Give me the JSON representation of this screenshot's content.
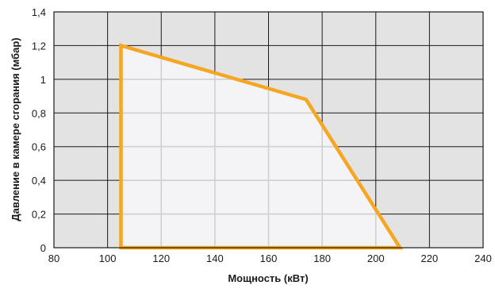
{
  "chart_data": {
    "type": "area",
    "xlabel": "Мощность (кВт)",
    "ylabel": "Давление в камере сгорания (мбар)",
    "xlim": [
      80,
      240
    ],
    "ylim": [
      0,
      1.4
    ],
    "x_ticks": [
      80,
      100,
      120,
      140,
      160,
      180,
      200,
      220,
      240
    ],
    "y_ticks": [
      0,
      0.2,
      0.4,
      0.6,
      0.8,
      1,
      1.2,
      1.4
    ],
    "x_tick_labels": [
      "80",
      "100",
      "120",
      "140",
      "160",
      "180",
      "200",
      "220",
      "240"
    ],
    "y_tick_labels": [
      "0",
      "0,2",
      "0,4",
      "0,6",
      "0,8",
      "1",
      "1,2",
      "1,4"
    ],
    "grid": true,
    "series": [
      {
        "x": [
          105,
          105,
          174,
          209,
          105
        ],
        "y": [
          0,
          1.2,
          0.88,
          0,
          0
        ]
      }
    ],
    "colors": {
      "plot_background": "#e3e3e3",
      "region_fill": "#f4f4f6",
      "outline": "#f5a623",
      "grid_inside_region": "#cfcfd4",
      "grid": "#1a1a1a"
    }
  }
}
